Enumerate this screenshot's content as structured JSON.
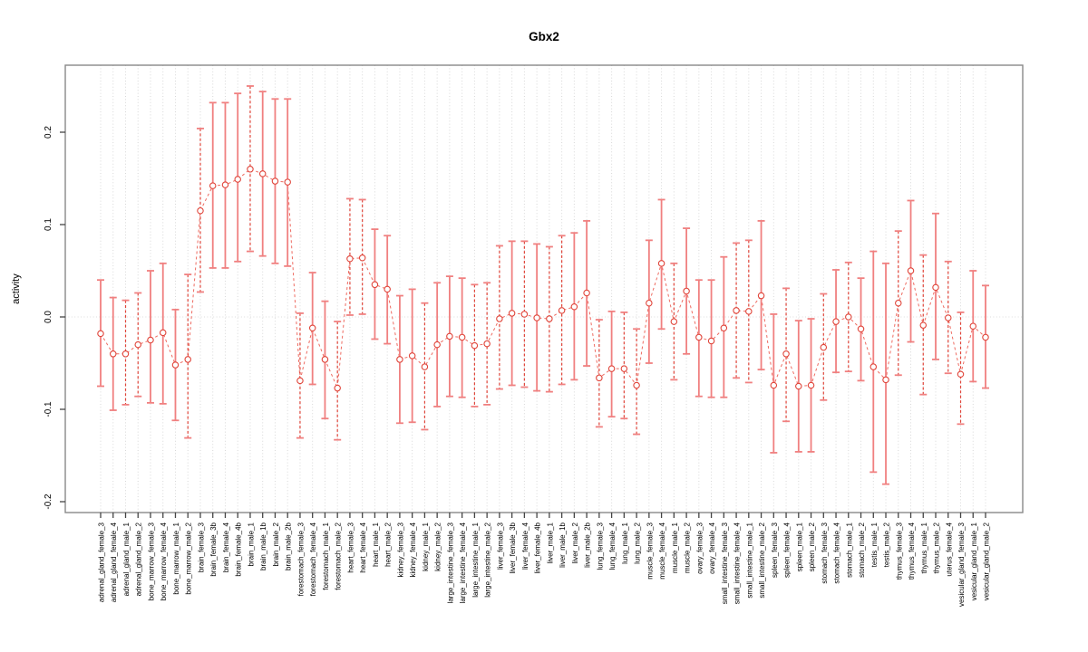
{
  "chart_data": {
    "type": "line",
    "subtype": "points-with-error-bars",
    "title": "Gbx2",
    "ylabel": "activity",
    "xlabel": "",
    "ylim": [
      -0.21,
      0.27
    ],
    "grid": "vertical-dotted-per-category-plus-dotted-zero-line",
    "legend": "none",
    "yticks": {
      "values": [
        -0.2,
        -0.1,
        0.0,
        0.1,
        0.2
      ],
      "labels": [
        "-0.2",
        "-0.1",
        "0.0",
        "0.1",
        "0.2"
      ]
    },
    "categories": [
      "adrenal_gland_female_3",
      "adrenal_gland_female_4",
      "adrenal_gland_male_1",
      "adrenal_gland_male_2",
      "bone_marrow_female_3",
      "bone_marrow_female_4",
      "bone_marrow_male_1",
      "bone_marrow_male_2",
      "brain_female_3",
      "brain_female_3b",
      "brain_female_4",
      "brain_female_4b",
      "brain_male_1",
      "brain_male_1b",
      "brain_male_2",
      "brain_male_2b",
      "forestomach_female_3",
      "forestomach_female_4",
      "forestomach_male_1",
      "forestomach_male_2",
      "heart_female_3",
      "heart_female_4",
      "heart_male_1",
      "heart_male_2",
      "kidney_female_3",
      "kidney_female_4",
      "kidney_male_1",
      "kidney_male_2",
      "large_intestine_female_3",
      "large_intestine_female_4",
      "large_intestine_male_1",
      "large_intestine_male_2",
      "liver_female_3",
      "liver_female_3b",
      "liver_female_4",
      "liver_female_4b",
      "liver_male_1",
      "liver_male_1b",
      "liver_male_2",
      "liver_male_2b",
      "lung_female_3",
      "lung_female_4",
      "lung_male_1",
      "lung_male_2",
      "muscle_female_3",
      "muscle_female_4",
      "muscle_male_1",
      "muscle_male_2",
      "ovary_female_3",
      "ovary_female_4",
      "small_intestine_female_3",
      "small_intestine_female_4",
      "small_intestine_male_1",
      "small_intestine_male_2",
      "spleen_female_3",
      "spleen_female_4",
      "spleen_male_1",
      "spleen_male_2",
      "stomach_female_3",
      "stomach_female_4",
      "stomach_male_1",
      "stomach_male_2",
      "testis_male_1",
      "testis_male_2",
      "thymus_female_3",
      "thymus_female_4",
      "thymus_male_1",
      "thymus_male_2",
      "uterus_female_4",
      "vesicular_gland_female_3",
      "vesicular_gland_male_1",
      "vesicular_gland_male_2"
    ],
    "series": [
      {
        "name": "activity",
        "values": [
          -0.018,
          -0.04,
          -0.04,
          -0.03,
          -0.025,
          -0.017,
          -0.052,
          -0.046,
          0.115,
          0.142,
          0.143,
          0.149,
          0.16,
          0.155,
          0.147,
          0.146,
          -0.069,
          -0.012,
          -0.046,
          -0.077,
          0.063,
          0.064,
          0.035,
          0.03,
          -0.046,
          -0.042,
          -0.054,
          -0.03,
          -0.021,
          -0.022,
          -0.031,
          -0.029,
          -0.002,
          0.004,
          0.003,
          -0.001,
          -0.002,
          0.007,
          0.011,
          0.026,
          -0.066,
          -0.056,
          -0.056,
          -0.074,
          0.015,
          0.058,
          -0.005,
          0.028,
          -0.022,
          -0.026,
          -0.012,
          0.007,
          0.006,
          0.023,
          -0.074,
          -0.04,
          -0.075,
          -0.074,
          -0.033,
          -0.005,
          0.0,
          -0.013,
          -0.054,
          -0.068,
          0.015,
          0.05,
          -0.009,
          0.032,
          -0.001,
          -0.062,
          -0.01,
          -0.022
        ],
        "upper": [
          0.04,
          0.021,
          0.018,
          0.026,
          0.05,
          0.058,
          0.008,
          0.046,
          0.204,
          0.232,
          0.232,
          0.242,
          0.25,
          0.244,
          0.236,
          0.236,
          0.004,
          0.048,
          0.017,
          -0.005,
          0.128,
          0.127,
          0.095,
          0.088,
          0.023,
          0.03,
          0.015,
          0.037,
          0.044,
          0.042,
          0.035,
          0.037,
          0.077,
          0.082,
          0.082,
          0.079,
          0.076,
          0.088,
          0.091,
          0.104,
          -0.003,
          0.006,
          0.005,
          -0.013,
          0.083,
          0.127,
          0.058,
          0.096,
          0.04,
          0.04,
          0.065,
          0.08,
          0.083,
          0.104,
          0.003,
          0.031,
          -0.004,
          -0.002,
          0.025,
          0.051,
          0.059,
          0.042,
          0.071,
          0.058,
          0.093,
          0.126,
          0.067,
          0.112,
          0.06,
          0.005,
          0.05,
          0.034
        ],
        "lower": [
          -0.075,
          -0.101,
          -0.095,
          -0.086,
          -0.093,
          -0.094,
          -0.112,
          -0.131,
          0.027,
          0.053,
          0.053,
          0.06,
          0.071,
          0.066,
          0.058,
          0.055,
          -0.131,
          -0.073,
          -0.11,
          -0.133,
          0.002,
          0.003,
          -0.024,
          -0.029,
          -0.115,
          -0.114,
          -0.122,
          -0.097,
          -0.086,
          -0.087,
          -0.097,
          -0.095,
          -0.078,
          -0.074,
          -0.076,
          -0.08,
          -0.081,
          -0.073,
          -0.068,
          -0.053,
          -0.119,
          -0.108,
          -0.11,
          -0.127,
          -0.05,
          -0.013,
          -0.068,
          -0.04,
          -0.086,
          -0.087,
          -0.087,
          -0.066,
          -0.071,
          -0.057,
          -0.147,
          -0.113,
          -0.146,
          -0.146,
          -0.09,
          -0.06,
          -0.059,
          -0.069,
          -0.168,
          -0.181,
          -0.063,
          -0.027,
          -0.084,
          -0.046,
          -0.061,
          -0.116,
          -0.07,
          -0.077
        ],
        "bar_styles": [
          "solid",
          "solid",
          "dashed",
          "dashed",
          "solid",
          "solid",
          "solid",
          "dashed",
          "dashed",
          "solid",
          "solid",
          "solid",
          "dashed",
          "solid",
          "solid",
          "solid",
          "dashed",
          "solid",
          "solid",
          "dashed",
          "dashed",
          "dashed",
          "solid",
          "solid",
          "solid",
          "solid",
          "dashed",
          "solid",
          "solid",
          "solid",
          "dashed",
          "dashed",
          "dashed",
          "solid",
          "dashed",
          "solid",
          "dashed",
          "dashed",
          "solid",
          "solid",
          "dashed",
          "solid",
          "dashed",
          "dashed",
          "solid",
          "solid",
          "dashed",
          "solid",
          "solid",
          "solid",
          "solid",
          "dashed",
          "dashed",
          "solid",
          "solid",
          "dashed",
          "solid",
          "solid",
          "dashed",
          "solid",
          "dashed",
          "solid",
          "solid",
          "solid",
          "dashed",
          "solid",
          "dashed",
          "solid",
          "dashed",
          "dashed",
          "solid",
          "solid"
        ]
      }
    ],
    "colors": {
      "error_bar": "#F08080",
      "error_bar_dashed": "#E0453A",
      "point_stroke": "#E0453A",
      "point_fill": "#FFFFFF",
      "connector": "#EE6B61",
      "gridline": "#D8D8D8",
      "zero_line": "#DCDCDC",
      "box": "#888888",
      "tick": "#444444",
      "text": "#000000"
    }
  }
}
